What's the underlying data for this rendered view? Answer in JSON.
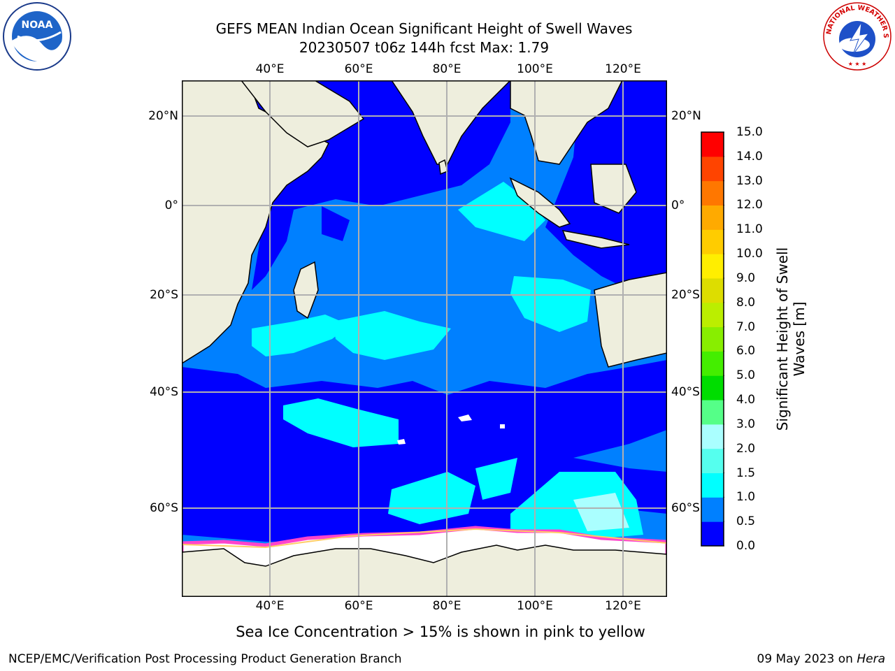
{
  "title_line1": "GEFS MEAN Indian Ocean Significant Height of Swell Waves",
  "title_line2": "20230507 t06z 144h fcst   Max: 1.79",
  "logos": {
    "left": "NOAA",
    "right": "NATIONAL WEATHER SERVICE"
  },
  "map": {
    "lon_labels": [
      "40°E",
      "60°E",
      "80°E",
      "100°E",
      "120°E"
    ],
    "lat_labels": [
      "20°N",
      "0°",
      "20°S",
      "40°S",
      "60°S"
    ],
    "colors": {
      "land": "#eeeedd",
      "ocean_low": "#0000ff",
      "ocean_mid": "#0080ff",
      "ocean_high": "#00ffff",
      "ice": "#ffffff",
      "ice_edge": "#ff44cc"
    }
  },
  "colorbar": {
    "title": "Significant Height of Swell Waves [m]",
    "ticks": [
      "0.0",
      "0.5",
      "1.0",
      "1.5",
      "2.0",
      "3.0",
      "4.0",
      "5.0",
      "6.0",
      "7.0",
      "8.0",
      "9.0",
      "10.0",
      "11.0",
      "12.0",
      "13.0",
      "14.0",
      "15.0"
    ],
    "colors": [
      "#0000ff",
      "#0080ff",
      "#00ffff",
      "#55ffee",
      "#aaffff",
      "#55ff88",
      "#00dd00",
      "#44ee00",
      "#88ee00",
      "#bbee00",
      "#dddd00",
      "#ffee00",
      "#ffcc00",
      "#ffaa00",
      "#ff7700",
      "#ff4400",
      "#ff0000"
    ]
  },
  "footnote": "Sea Ice Concentration > 15% is shown in pink to yellow",
  "footer_left": "NCEP/EMC/Verification Post Processing Product Generation Branch",
  "footer_right_date": "09 May 2023 on ",
  "footer_right_machine": "Hera"
}
